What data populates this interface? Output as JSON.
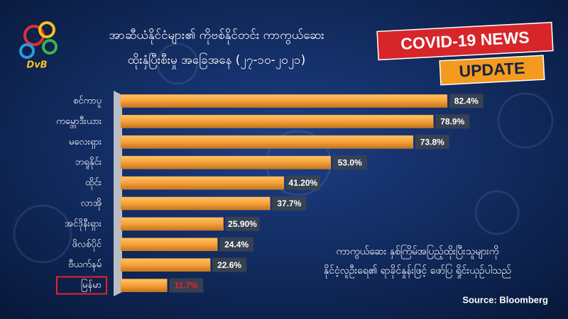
{
  "chart_data": {
    "type": "bar",
    "orientation": "horizontal",
    "title": "အာဆီယံနိုင်ငံများ၏ ကိုဗစ်နိုင်တင်း ကာကွယ်ဆေး",
    "subtitle": "ထိုးနှံပြီးစီးမှု အခြေအနေ (၂၇-၁၀-၂၀၂၁)",
    "badges": [
      "COVID-19 NEWS",
      "UPDATE"
    ],
    "logo_text": "DvB",
    "categories": [
      "စင်ကာပူ",
      "ကမ္ဘောဒီးယား",
      "မလေးရှား",
      "ဘရူနိုင်း",
      "ထိုင်း",
      "လာအို",
      "အင်ဒိုနီးရှား",
      "ဖိလစ်ပိုင်",
      "ဗီယက်နမ်",
      "မြန်မာ"
    ],
    "values": [
      82.4,
      78.9,
      73.8,
      53.0,
      41.2,
      37.7,
      25.9,
      24.4,
      22.6,
      11.7
    ],
    "value_labels": [
      "82.4%",
      "78.9%",
      "73.8%",
      "53.0%",
      "41.20%",
      "37.7%",
      "25.90%",
      "24.4%",
      "22.6%",
      "11.7%"
    ],
    "color": "#f5a23a",
    "xlim": [
      0,
      100
    ],
    "highlight_index": 9,
    "highlight_color": "#e8242a",
    "note": [
      "ကာကွယ်ဆေး နှစ်ကြိမ်အပြည့်ထိုးပြီးသူများကို",
      "နိုင်ငံ့လူဦးရေ၏ ရာခိုင်နှုန်းဖြင့် ဖော်ပြ ရှိုင်းယှဉ်ပါသည်"
    ],
    "source": "Source: Bloomberg"
  }
}
